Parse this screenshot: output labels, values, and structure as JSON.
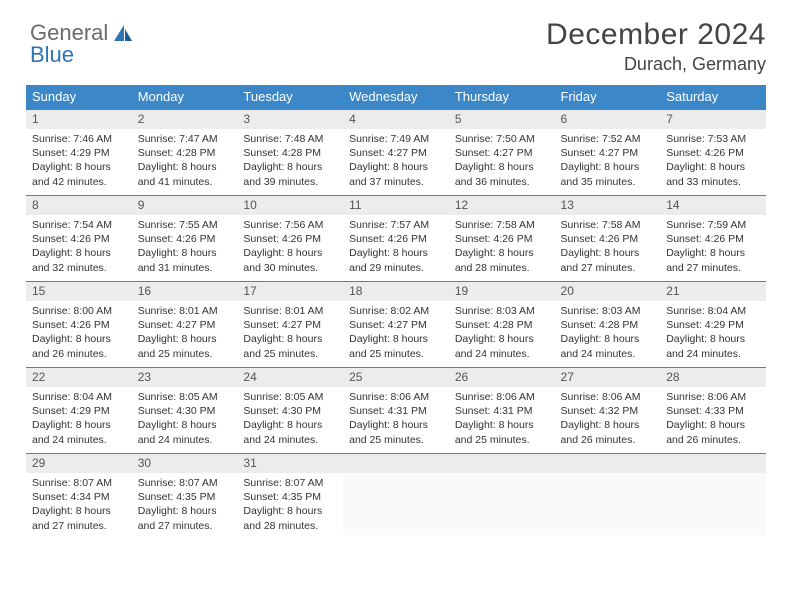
{
  "logo": {
    "word1": "General",
    "word2": "Blue"
  },
  "title": "December 2024",
  "location": "Durach, Germany",
  "colors": {
    "header_bg": "#3b87c8",
    "header_text": "#ffffff",
    "daynum_bg": "#ececec",
    "border": "#3b87c8",
    "body_text": "#333333",
    "page_bg": "#ffffff"
  },
  "typography": {
    "title_fontsize": 30,
    "location_fontsize": 18,
    "dayheader_fontsize": 13,
    "cell_fontsize": 10.5
  },
  "calendar": {
    "type": "table",
    "columns": [
      "Sunday",
      "Monday",
      "Tuesday",
      "Wednesday",
      "Thursday",
      "Friday",
      "Saturday"
    ],
    "weeks": [
      [
        {
          "n": "1",
          "sr": "Sunrise: 7:46 AM",
          "ss": "Sunset: 4:29 PM",
          "dl": "Daylight: 8 hours and 42 minutes."
        },
        {
          "n": "2",
          "sr": "Sunrise: 7:47 AM",
          "ss": "Sunset: 4:28 PM",
          "dl": "Daylight: 8 hours and 41 minutes."
        },
        {
          "n": "3",
          "sr": "Sunrise: 7:48 AM",
          "ss": "Sunset: 4:28 PM",
          "dl": "Daylight: 8 hours and 39 minutes."
        },
        {
          "n": "4",
          "sr": "Sunrise: 7:49 AM",
          "ss": "Sunset: 4:27 PM",
          "dl": "Daylight: 8 hours and 37 minutes."
        },
        {
          "n": "5",
          "sr": "Sunrise: 7:50 AM",
          "ss": "Sunset: 4:27 PM",
          "dl": "Daylight: 8 hours and 36 minutes."
        },
        {
          "n": "6",
          "sr": "Sunrise: 7:52 AM",
          "ss": "Sunset: 4:27 PM",
          "dl": "Daylight: 8 hours and 35 minutes."
        },
        {
          "n": "7",
          "sr": "Sunrise: 7:53 AM",
          "ss": "Sunset: 4:26 PM",
          "dl": "Daylight: 8 hours and 33 minutes."
        }
      ],
      [
        {
          "n": "8",
          "sr": "Sunrise: 7:54 AM",
          "ss": "Sunset: 4:26 PM",
          "dl": "Daylight: 8 hours and 32 minutes."
        },
        {
          "n": "9",
          "sr": "Sunrise: 7:55 AM",
          "ss": "Sunset: 4:26 PM",
          "dl": "Daylight: 8 hours and 31 minutes."
        },
        {
          "n": "10",
          "sr": "Sunrise: 7:56 AM",
          "ss": "Sunset: 4:26 PM",
          "dl": "Daylight: 8 hours and 30 minutes."
        },
        {
          "n": "11",
          "sr": "Sunrise: 7:57 AM",
          "ss": "Sunset: 4:26 PM",
          "dl": "Daylight: 8 hours and 29 minutes."
        },
        {
          "n": "12",
          "sr": "Sunrise: 7:58 AM",
          "ss": "Sunset: 4:26 PM",
          "dl": "Daylight: 8 hours and 28 minutes."
        },
        {
          "n": "13",
          "sr": "Sunrise: 7:58 AM",
          "ss": "Sunset: 4:26 PM",
          "dl": "Daylight: 8 hours and 27 minutes."
        },
        {
          "n": "14",
          "sr": "Sunrise: 7:59 AM",
          "ss": "Sunset: 4:26 PM",
          "dl": "Daylight: 8 hours and 27 minutes."
        }
      ],
      [
        {
          "n": "15",
          "sr": "Sunrise: 8:00 AM",
          "ss": "Sunset: 4:26 PM",
          "dl": "Daylight: 8 hours and 26 minutes."
        },
        {
          "n": "16",
          "sr": "Sunrise: 8:01 AM",
          "ss": "Sunset: 4:27 PM",
          "dl": "Daylight: 8 hours and 25 minutes."
        },
        {
          "n": "17",
          "sr": "Sunrise: 8:01 AM",
          "ss": "Sunset: 4:27 PM",
          "dl": "Daylight: 8 hours and 25 minutes."
        },
        {
          "n": "18",
          "sr": "Sunrise: 8:02 AM",
          "ss": "Sunset: 4:27 PM",
          "dl": "Daylight: 8 hours and 25 minutes."
        },
        {
          "n": "19",
          "sr": "Sunrise: 8:03 AM",
          "ss": "Sunset: 4:28 PM",
          "dl": "Daylight: 8 hours and 24 minutes."
        },
        {
          "n": "20",
          "sr": "Sunrise: 8:03 AM",
          "ss": "Sunset: 4:28 PM",
          "dl": "Daylight: 8 hours and 24 minutes."
        },
        {
          "n": "21",
          "sr": "Sunrise: 8:04 AM",
          "ss": "Sunset: 4:29 PM",
          "dl": "Daylight: 8 hours and 24 minutes."
        }
      ],
      [
        {
          "n": "22",
          "sr": "Sunrise: 8:04 AM",
          "ss": "Sunset: 4:29 PM",
          "dl": "Daylight: 8 hours and 24 minutes."
        },
        {
          "n": "23",
          "sr": "Sunrise: 8:05 AM",
          "ss": "Sunset: 4:30 PM",
          "dl": "Daylight: 8 hours and 24 minutes."
        },
        {
          "n": "24",
          "sr": "Sunrise: 8:05 AM",
          "ss": "Sunset: 4:30 PM",
          "dl": "Daylight: 8 hours and 24 minutes."
        },
        {
          "n": "25",
          "sr": "Sunrise: 8:06 AM",
          "ss": "Sunset: 4:31 PM",
          "dl": "Daylight: 8 hours and 25 minutes."
        },
        {
          "n": "26",
          "sr": "Sunrise: 8:06 AM",
          "ss": "Sunset: 4:31 PM",
          "dl": "Daylight: 8 hours and 25 minutes."
        },
        {
          "n": "27",
          "sr": "Sunrise: 8:06 AM",
          "ss": "Sunset: 4:32 PM",
          "dl": "Daylight: 8 hours and 26 minutes."
        },
        {
          "n": "28",
          "sr": "Sunrise: 8:06 AM",
          "ss": "Sunset: 4:33 PM",
          "dl": "Daylight: 8 hours and 26 minutes."
        }
      ],
      [
        {
          "n": "29",
          "sr": "Sunrise: 8:07 AM",
          "ss": "Sunset: 4:34 PM",
          "dl": "Daylight: 8 hours and 27 minutes."
        },
        {
          "n": "30",
          "sr": "Sunrise: 8:07 AM",
          "ss": "Sunset: 4:35 PM",
          "dl": "Daylight: 8 hours and 27 minutes."
        },
        {
          "n": "31",
          "sr": "Sunrise: 8:07 AM",
          "ss": "Sunset: 4:35 PM",
          "dl": "Daylight: 8 hours and 28 minutes."
        },
        {
          "empty": true
        },
        {
          "empty": true
        },
        {
          "empty": true
        },
        {
          "empty": true
        }
      ]
    ]
  }
}
